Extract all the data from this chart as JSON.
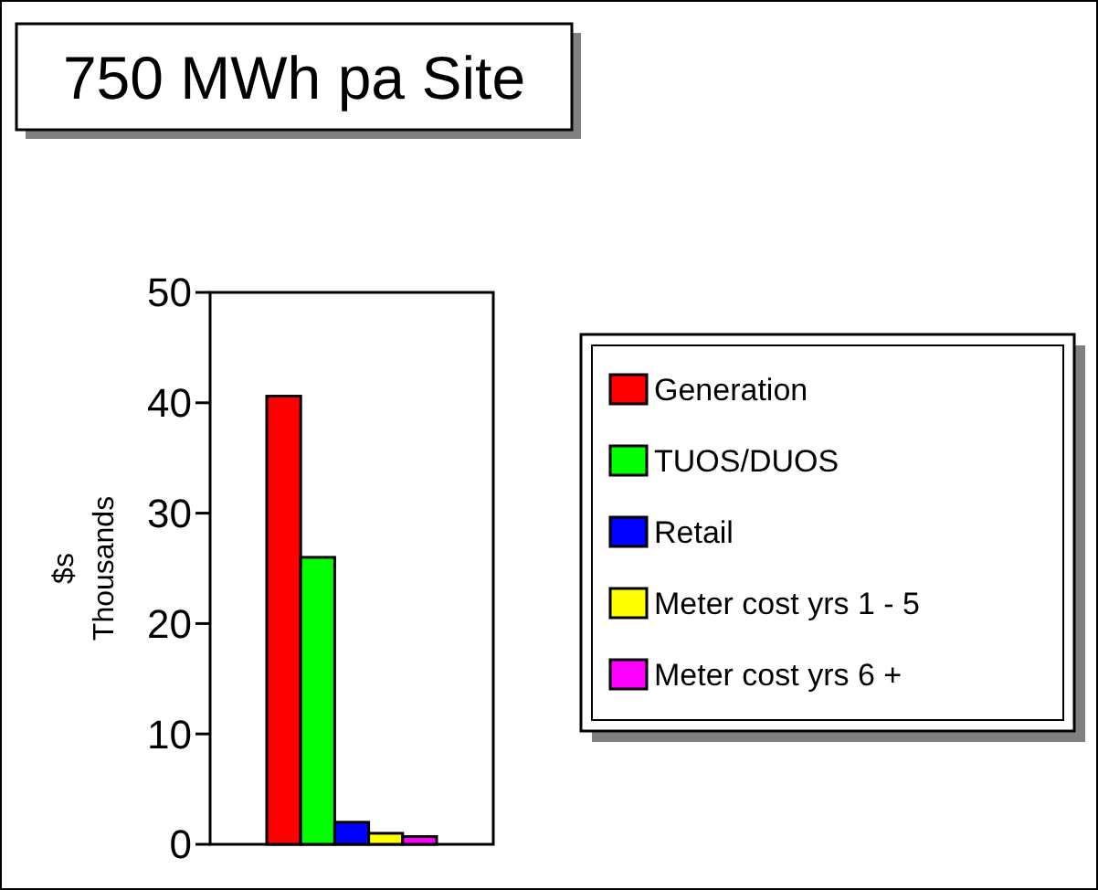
{
  "chart_data": {
    "type": "bar",
    "title": "750 MWh pa Site",
    "ylabel": "$s\nThousands",
    "categories": [
      null
    ],
    "series": [
      {
        "name": "Generation",
        "color": "#ff0000",
        "values": [
          40.6
        ]
      },
      {
        "name": "TUOS/DUOS",
        "color": "#00ff00",
        "values": [
          26
        ]
      },
      {
        "name": "Retail",
        "color": "#0000ff",
        "values": [
          2
        ]
      },
      {
        "name": "Meter cost yrs 1 - 5",
        "color": "#ffff00",
        "values": [
          1
        ]
      },
      {
        "name": "Meter cost yrs 6 +",
        "color": "#ff00ff",
        "values": [
          0.7
        ]
      }
    ],
    "ylim": [
      0,
      50
    ],
    "yticks": [
      0,
      10,
      20,
      30,
      40,
      50
    ],
    "legend": "right",
    "grid": false
  }
}
